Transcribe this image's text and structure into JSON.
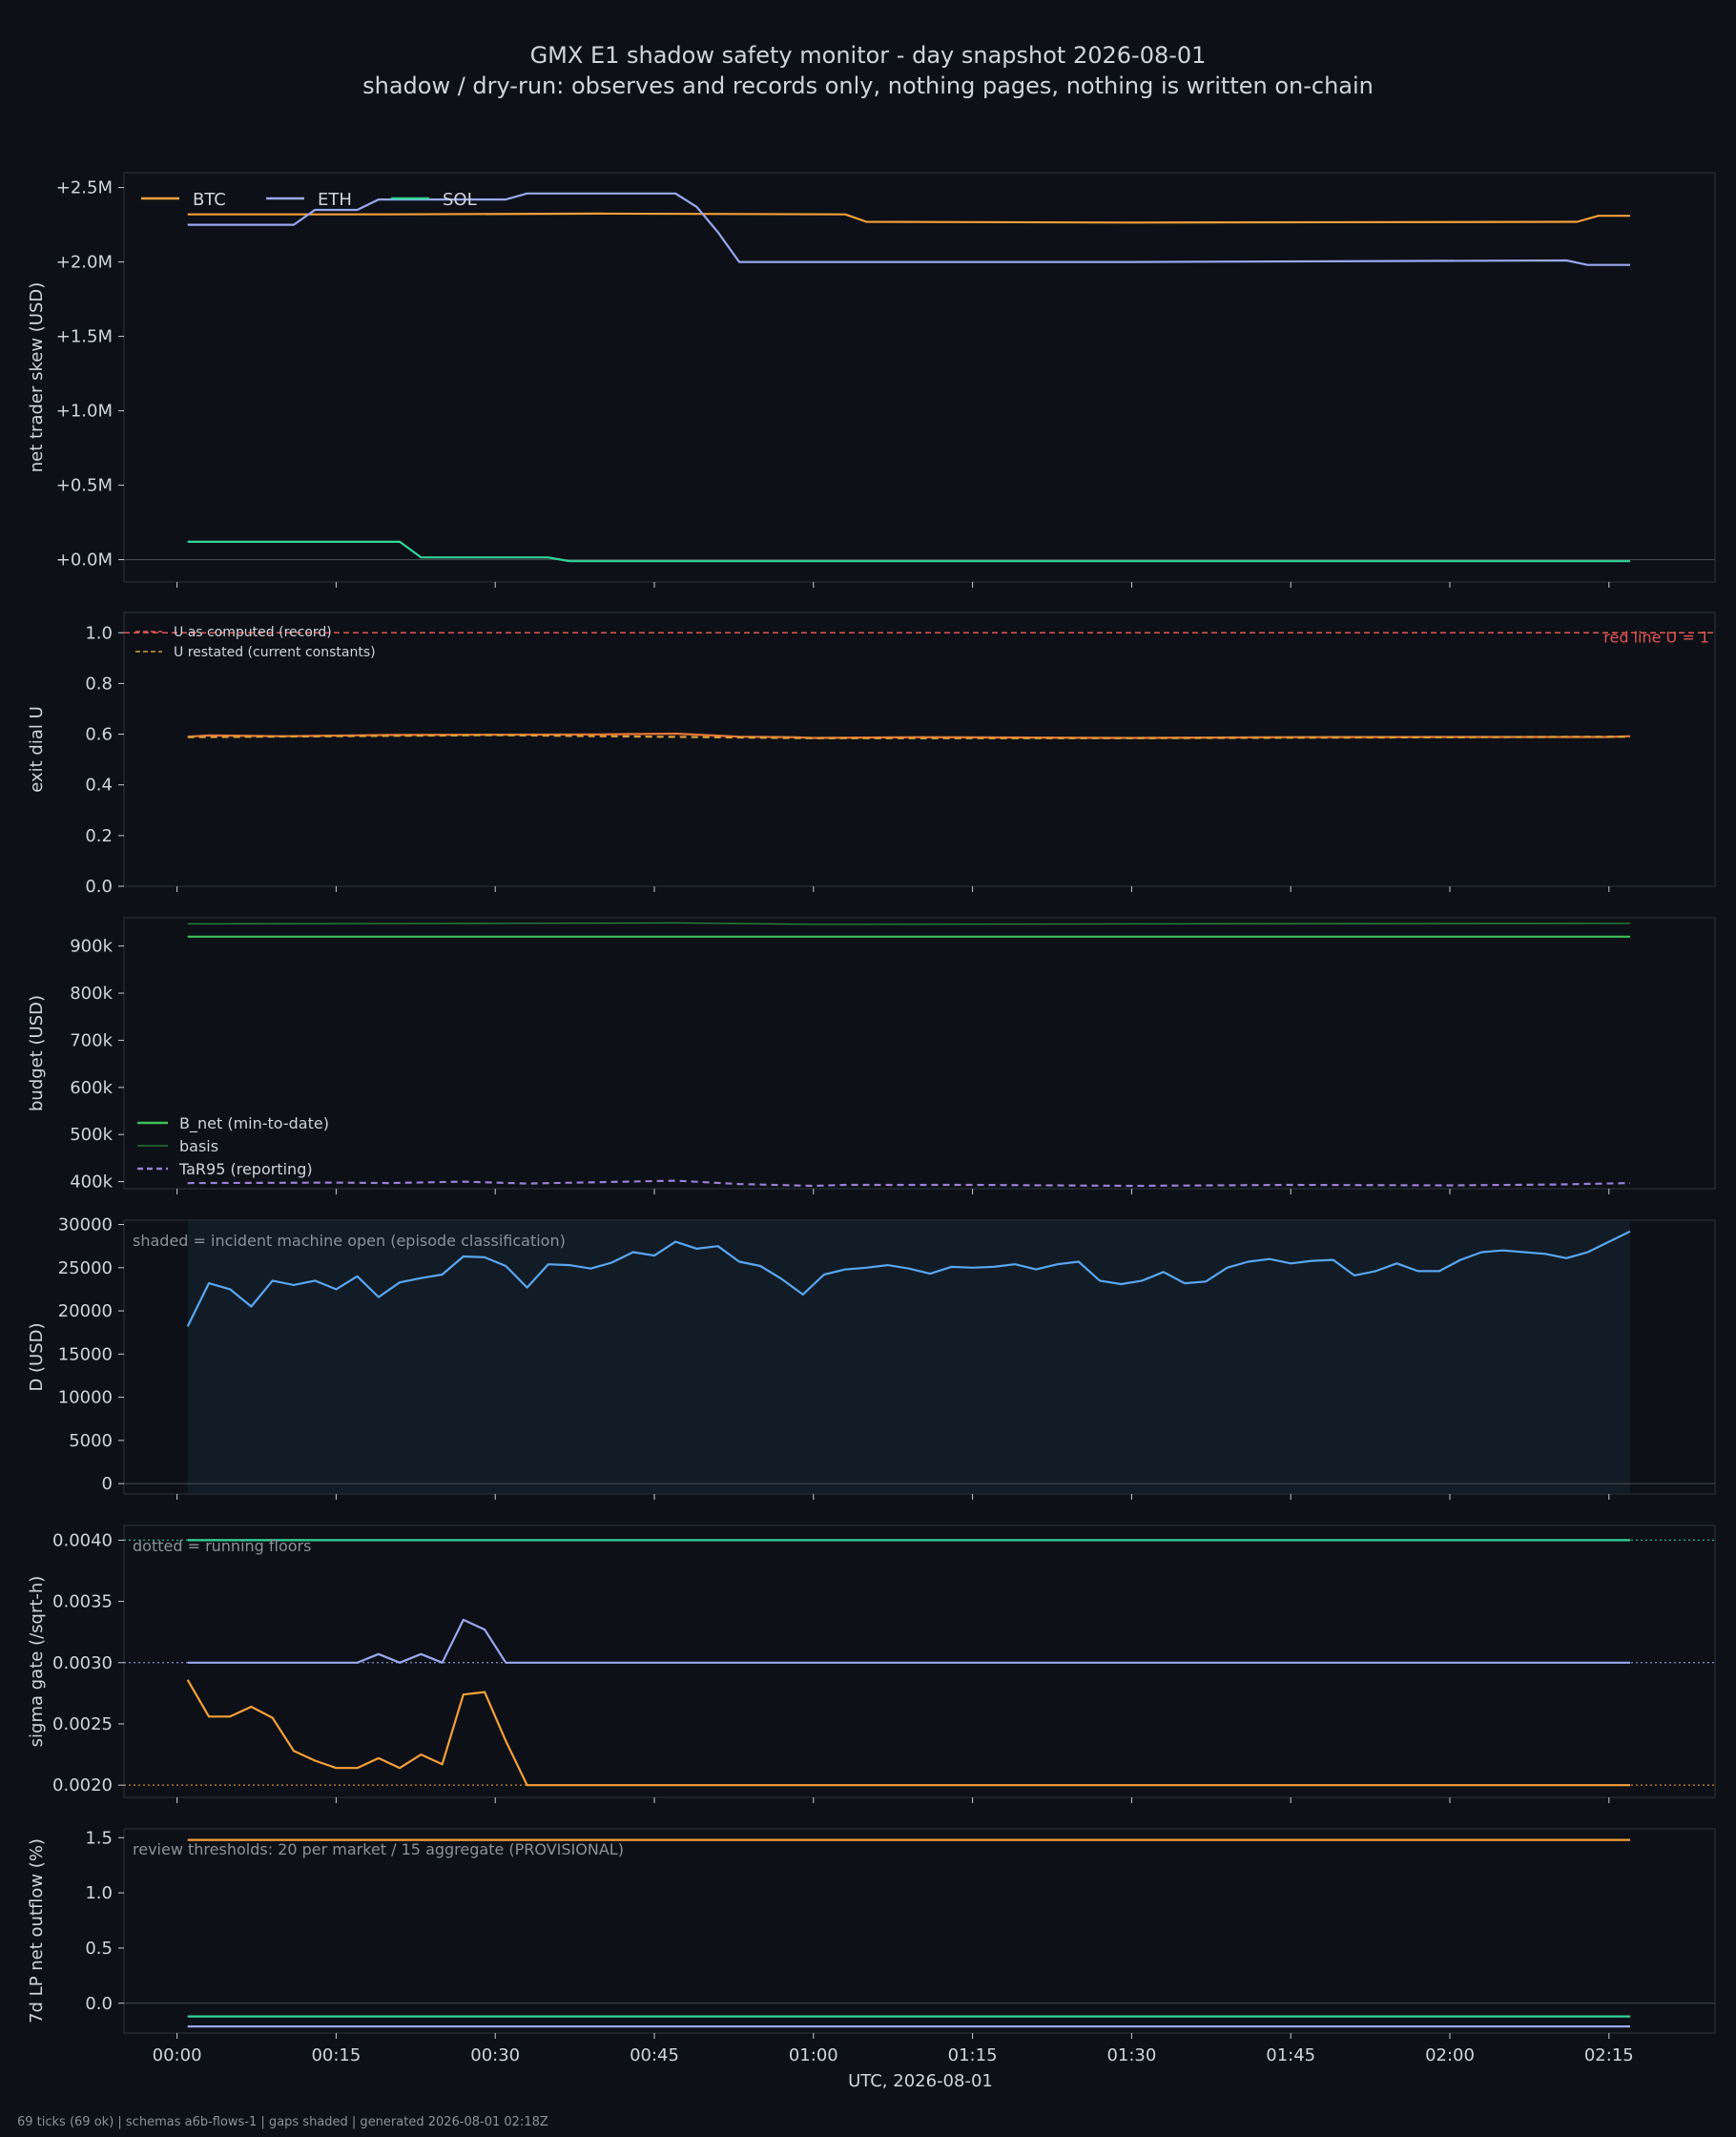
{
  "title": "GMX E1 shadow safety monitor - day snapshot 2026-08-01",
  "subtitle": "shadow / dry-run: observes and records only, nothing pages, nothing is written on-chain",
  "footer": "69 ticks (69 ok) | schemas a6b-flows-1 | gaps shaded | generated 2026-08-01 02:18Z",
  "xlabel": "UTC, 2026-08-01",
  "x_ticks": [
    "00:00",
    "00:15",
    "00:30",
    "00:45",
    "01:00",
    "01:15",
    "01:30",
    "01:45",
    "02:00",
    "02:15"
  ],
  "colors": {
    "background": "#0d1117",
    "btc": "#f5a03a",
    "eth": "#9aa8f0",
    "sol": "#33d69a",
    "u_record": "#e8773a",
    "red_line": "#e05555",
    "b_net": "#3fc05a",
    "basis": "#2a8a3e",
    "tar95": "#9a7fd6",
    "d": "#5aa6f0",
    "shade": "#111c27"
  },
  "chart_data": [
    {
      "type": "line",
      "ylabel": "net trader skew (USD)",
      "ylim": [
        -0.15,
        2.6
      ],
      "y_ticks": [
        "+0.0M",
        "+0.5M",
        "+1.0M",
        "+1.5M",
        "+2.0M",
        "+2.5M"
      ],
      "legend": [
        "BTC",
        "ETH",
        "SOL"
      ],
      "series": [
        {
          "name": "BTC",
          "color": "#f5a03a",
          "points": [
            [
              "00:01",
              2.32
            ],
            [
              "00:20",
              2.32
            ],
            [
              "00:40",
              2.325
            ],
            [
              "01:03",
              2.32
            ],
            [
              "01:05",
              2.27
            ],
            [
              "01:30",
              2.265
            ],
            [
              "02:12",
              2.27
            ],
            [
              "02:14",
              2.31
            ],
            [
              "02:17",
              2.31
            ]
          ]
        },
        {
          "name": "ETH",
          "color": "#9aa8f0",
          "points": [
            [
              "00:01",
              2.25
            ],
            [
              "00:11",
              2.25
            ],
            [
              "00:13",
              2.35
            ],
            [
              "00:17",
              2.35
            ],
            [
              "00:19",
              2.42
            ],
            [
              "00:31",
              2.42
            ],
            [
              "00:33",
              2.46
            ],
            [
              "00:47",
              2.46
            ],
            [
              "00:49",
              2.37
            ],
            [
              "00:51",
              2.2
            ],
            [
              "00:53",
              2.0
            ],
            [
              "01:00",
              2.0
            ],
            [
              "01:30",
              2.0
            ],
            [
              "02:11",
              2.01
            ],
            [
              "02:13",
              1.98
            ],
            [
              "02:17",
              1.98
            ]
          ]
        },
        {
          "name": "SOL",
          "color": "#33d69a",
          "points": [
            [
              "00:01",
              0.12
            ],
            [
              "00:21",
              0.12
            ],
            [
              "00:23",
              0.015
            ],
            [
              "00:35",
              0.015
            ],
            [
              "00:37",
              -0.01
            ],
            [
              "02:17",
              -0.01
            ]
          ]
        }
      ]
    },
    {
      "type": "line",
      "ylabel": "exit dial U",
      "ylim": [
        0,
        1.08
      ],
      "y_ticks": [
        "0.0",
        "0.2",
        "0.4",
        "0.6",
        "0.8",
        "1.0"
      ],
      "legend": [
        "U as computed (record)",
        "U restated (current constants)"
      ],
      "red_line_label": "red line U = 1",
      "red_line_value": 1.0,
      "series": [
        {
          "name": "U as computed (record)",
          "color": "#e8773a",
          "points": [
            [
              "00:01",
              0.59
            ],
            [
              "00:03",
              0.595
            ],
            [
              "00:10",
              0.592
            ],
            [
              "00:20",
              0.597
            ],
            [
              "00:30",
              0.598
            ],
            [
              "00:40",
              0.599
            ],
            [
              "00:47",
              0.602
            ],
            [
              "00:50",
              0.596
            ],
            [
              "00:53",
              0.59
            ],
            [
              "00:58",
              0.588
            ],
            [
              "01:00",
              0.585
            ],
            [
              "01:10",
              0.588
            ],
            [
              "01:30",
              0.585
            ],
            [
              "01:45",
              0.588
            ],
            [
              "02:00",
              0.589
            ],
            [
              "02:15",
              0.589
            ],
            [
              "02:17",
              0.592
            ]
          ]
        },
        {
          "name": "U restated (current constants)",
          "color": "#d9a03a",
          "dashed": true,
          "points": [
            [
              "00:01",
              0.588
            ],
            [
              "00:30",
              0.596
            ],
            [
              "01:00",
              0.584
            ],
            [
              "01:30",
              0.584
            ],
            [
              "02:17",
              0.59
            ]
          ]
        }
      ]
    },
    {
      "type": "line",
      "ylabel": "budget (USD)",
      "ylim": [
        385,
        960
      ],
      "y_ticks": [
        "400k",
        "500k",
        "600k",
        "700k",
        "800k",
        "900k"
      ],
      "legend": [
        "B_net (min-to-date)",
        "basis",
        "TaR95 (reporting)"
      ],
      "series": [
        {
          "name": "B_net (min-to-date)",
          "color": "#3fc05a",
          "points": [
            [
              "00:01",
              920
            ],
            [
              "02:17",
              920
            ]
          ]
        },
        {
          "name": "basis",
          "color": "#2a8a3e",
          "points": [
            [
              "00:01",
              947
            ],
            [
              "00:30",
              948
            ],
            [
              "00:47",
              949
            ],
            [
              "01:00",
              946
            ],
            [
              "01:30",
              947
            ],
            [
              "02:17",
              948
            ]
          ]
        },
        {
          "name": "TaR95 (reporting)",
          "color": "#9a7fd6",
          "dashed": true,
          "points": [
            [
              "00:01",
              397
            ],
            [
              "00:15",
              398
            ],
            [
              "00:20",
              397
            ],
            [
              "00:27",
              400
            ],
            [
              "00:33",
              396
            ],
            [
              "00:40",
              399
            ],
            [
              "00:47",
              402
            ],
            [
              "00:53",
              395
            ],
            [
              "01:00",
              391
            ],
            [
              "01:03",
              393
            ],
            [
              "01:15",
              393
            ],
            [
              "01:30",
              391
            ],
            [
              "01:45",
              393
            ],
            [
              "02:00",
              392
            ],
            [
              "02:10",
              394
            ],
            [
              "02:17",
              397
            ]
          ]
        }
      ]
    },
    {
      "type": "line",
      "ylabel": "D (USD)",
      "ylim": [
        -1200,
        30500
      ],
      "y_ticks": [
        "0",
        "5000",
        "10000",
        "15000",
        "20000",
        "25000",
        "30000"
      ],
      "note": "shaded = incident machine open (episode classification)",
      "shaded_range": [
        "00:01",
        "02:17"
      ],
      "series": [
        {
          "name": "D",
          "color": "#5aa6f0",
          "points": [
            [
              "00:01",
              18200
            ],
            [
              "00:03",
              23200
            ],
            [
              "00:05",
              22500
            ],
            [
              "00:07",
              20500
            ],
            [
              "00:09",
              23500
            ],
            [
              "00:11",
              23000
            ],
            [
              "00:13",
              23500
            ],
            [
              "00:15",
              22500
            ],
            [
              "00:17",
              24000
            ],
            [
              "00:19",
              21600
            ],
            [
              "00:21",
              23300
            ],
            [
              "00:23",
              23800
            ],
            [
              "00:25",
              24200
            ],
            [
              "00:27",
              26300
            ],
            [
              "00:29",
              26200
            ],
            [
              "00:31",
              25200
            ],
            [
              "00:33",
              22700
            ],
            [
              "00:35",
              25400
            ],
            [
              "00:37",
              25300
            ],
            [
              "00:39",
              24900
            ],
            [
              "00:41",
              25600
            ],
            [
              "00:43",
              26800
            ],
            [
              "00:45",
              26400
            ],
            [
              "00:47",
              28000
            ],
            [
              "00:49",
              27200
            ],
            [
              "00:51",
              27500
            ],
            [
              "00:53",
              25700
            ],
            [
              "00:55",
              25200
            ],
            [
              "00:57",
              23700
            ],
            [
              "00:59",
              21900
            ],
            [
              "01:01",
              24200
            ],
            [
              "01:03",
              24800
            ],
            [
              "01:05",
              25000
            ],
            [
              "01:07",
              25300
            ],
            [
              "01:09",
              24900
            ],
            [
              "01:11",
              24300
            ],
            [
              "01:13",
              25100
            ],
            [
              "01:15",
              25000
            ],
            [
              "01:17",
              25100
            ],
            [
              "01:19",
              25400
            ],
            [
              "01:21",
              24800
            ],
            [
              "01:23",
              25400
            ],
            [
              "01:25",
              25700
            ],
            [
              "01:27",
              23500
            ],
            [
              "01:29",
              23100
            ],
            [
              "01:31",
              23500
            ],
            [
              "01:33",
              24500
            ],
            [
              "01:35",
              23200
            ],
            [
              "01:37",
              23400
            ],
            [
              "01:39",
              25000
            ],
            [
              "01:41",
              25700
            ],
            [
              "01:43",
              26000
            ],
            [
              "01:45",
              25500
            ],
            [
              "01:47",
              25800
            ],
            [
              "01:49",
              25900
            ],
            [
              "01:51",
              24100
            ],
            [
              "01:53",
              24600
            ],
            [
              "01:55",
              25500
            ],
            [
              "01:57",
              24600
            ],
            [
              "01:59",
              24600
            ],
            [
              "02:01",
              25900
            ],
            [
              "02:03",
              26800
            ],
            [
              "02:05",
              27000
            ],
            [
              "02:07",
              26800
            ],
            [
              "02:09",
              26600
            ],
            [
              "02:11",
              26100
            ],
            [
              "02:13",
              26800
            ],
            [
              "02:15",
              28000
            ],
            [
              "02:17",
              29200
            ]
          ]
        }
      ]
    },
    {
      "type": "line",
      "ylabel": "sigma gate (/sqrt-h)",
      "ylim": [
        0.0019,
        0.00412
      ],
      "y_ticks": [
        "0.0020",
        "0.0025",
        "0.0030",
        "0.0035",
        "0.0040"
      ],
      "note": "dotted = running floors",
      "floors": [
        {
          "value": 0.004,
          "color": "#33d69a"
        },
        {
          "value": 0.003,
          "color": "#9aa8f0"
        },
        {
          "value": 0.002,
          "color": "#f5a03a"
        }
      ],
      "series": [
        {
          "name": "SOL",
          "color": "#33d69a",
          "points": [
            [
              "00:01",
              0.004
            ],
            [
              "02:17",
              0.004
            ]
          ]
        },
        {
          "name": "ETH",
          "color": "#9aa8f0",
          "points": [
            [
              "00:01",
              0.003
            ],
            [
              "00:17",
              0.003
            ],
            [
              "00:19",
              0.00307
            ],
            [
              "00:21",
              0.003
            ],
            [
              "00:23",
              0.00307
            ],
            [
              "00:25",
              0.003
            ],
            [
              "00:27",
              0.00335
            ],
            [
              "00:29",
              0.00327
            ],
            [
              "00:31",
              0.003
            ],
            [
              "02:17",
              0.003
            ]
          ]
        },
        {
          "name": "BTC",
          "color": "#f5a03a",
          "points": [
            [
              "00:01",
              0.00286
            ],
            [
              "00:03",
              0.00256
            ],
            [
              "00:05",
              0.00256
            ],
            [
              "00:07",
              0.00264
            ],
            [
              "00:09",
              0.00255
            ],
            [
              "00:11",
              0.00228
            ],
            [
              "00:13",
              0.0022
            ],
            [
              "00:15",
              0.00214
            ],
            [
              "00:17",
              0.00214
            ],
            [
              "00:19",
              0.00222
            ],
            [
              "00:21",
              0.00214
            ],
            [
              "00:23",
              0.00225
            ],
            [
              "00:25",
              0.00217
            ],
            [
              "00:27",
              0.00274
            ],
            [
              "00:29",
              0.00276
            ],
            [
              "00:31",
              0.00236
            ],
            [
              "00:33",
              0.002
            ],
            [
              "02:17",
              0.002
            ]
          ]
        }
      ]
    },
    {
      "type": "line",
      "ylabel": "7d LP net outflow (%)",
      "xlabel": "UTC, 2026-08-01",
      "ylim": [
        -0.27,
        1.58
      ],
      "y_ticks": [
        "0.0",
        "0.5",
        "1.0",
        "1.5"
      ],
      "note": "review thresholds: 20 per market / 15 aggregate (PROVISIONAL)",
      "series": [
        {
          "name": "BTC",
          "color": "#f5a03a",
          "points": [
            [
              "00:01",
              1.48
            ],
            [
              "02:17",
              1.48
            ]
          ]
        },
        {
          "name": "SOL",
          "color": "#33d69a",
          "points": [
            [
              "00:01",
              -0.12
            ],
            [
              "02:17",
              -0.12
            ]
          ]
        },
        {
          "name": "ETH",
          "color": "#9aa8f0",
          "points": [
            [
              "00:01",
              -0.21
            ],
            [
              "02:17",
              -0.21
            ]
          ]
        }
      ]
    }
  ]
}
